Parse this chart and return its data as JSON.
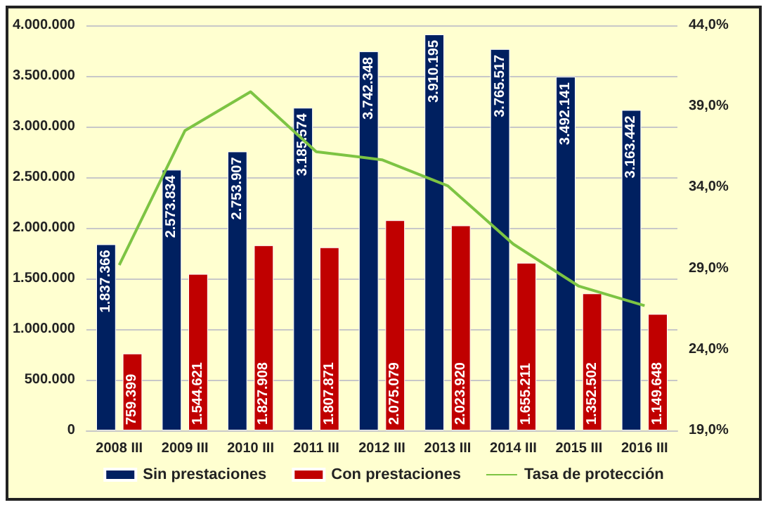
{
  "chart_data": {
    "type": "bar",
    "categories": [
      "2008 III",
      "2009 III",
      "2010 III",
      "2011 III",
      "2012 III",
      "2013 III",
      "2014 III",
      "2015 III",
      "2016 III"
    ],
    "series": [
      {
        "name": "Sin prestaciones",
        "color": "#002060",
        "values": [
          1837366,
          2573834,
          2753907,
          3185574,
          3742348,
          3910195,
          3765517,
          3492141,
          3163442
        ],
        "value_labels": [
          "1.837.366",
          "2.573.834",
          "2.753.907",
          "3.185.574",
          "3.742.348",
          "3.910.195",
          "3.765.517",
          "3.492.141",
          "3.163.442"
        ]
      },
      {
        "name": "Con prestaciones",
        "color": "#c00000",
        "values": [
          759399,
          1544621,
          1827908,
          1807871,
          2075079,
          2023920,
          1655211,
          1352502,
          1149648
        ],
        "value_labels": [
          "759.399",
          "1.544.621",
          "1.827.908",
          "1.807.871",
          "2.075.079",
          "2.023.920",
          "1.655.211",
          "1.352.502",
          "1.149.648"
        ]
      },
      {
        "name": "Tasa de protección",
        "type": "line",
        "axis": "y2",
        "color": "#7dc443",
        "marker": "none",
        "values": [
          29.2,
          37.5,
          39.9,
          36.2,
          35.7,
          34.1,
          30.5,
          27.9,
          26.7
        ]
      }
    ],
    "ylim": [
      0,
      4000000
    ],
    "yticks": [
      {
        "value": 0,
        "label": "0"
      },
      {
        "value": 500000,
        "label": "500.000"
      },
      {
        "value": 1000000,
        "label": "1.000.000"
      },
      {
        "value": 1500000,
        "label": "1.500.000"
      },
      {
        "value": 2000000,
        "label": "2.000.000"
      },
      {
        "value": 2500000,
        "label": "2.500.000"
      },
      {
        "value": 3000000,
        "label": "3.000.000"
      },
      {
        "value": 3500000,
        "label": "3.500.000"
      },
      {
        "value": 4000000,
        "label": "4.000.000"
      }
    ],
    "y2lim": [
      19,
      44
    ],
    "y2ticks": [
      {
        "value": 19,
        "label": "19,0%"
      },
      {
        "value": 24,
        "label": "24,0%"
      },
      {
        "value": 29,
        "label": "29,0%"
      },
      {
        "value": 34,
        "label": "34,0%"
      },
      {
        "value": 39,
        "label": "39,0%"
      },
      {
        "value": 44,
        "label": "44,0%"
      }
    ],
    "grid": "y",
    "legend": "bottom"
  }
}
